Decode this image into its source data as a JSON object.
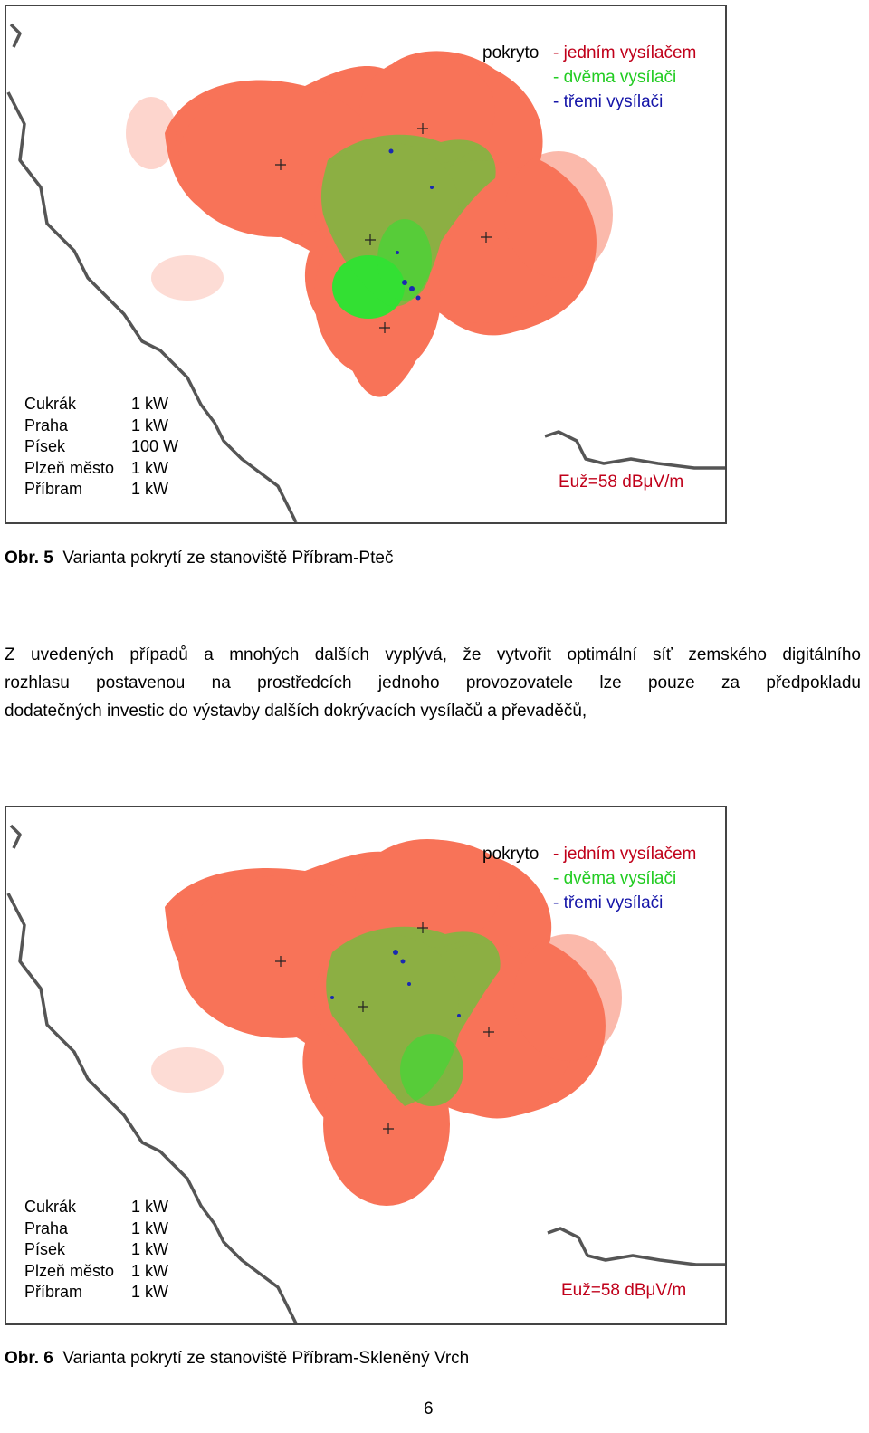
{
  "figures": [
    {
      "legend": {
        "lead": "pokryto",
        "items": [
          {
            "text": "- jedním vysílačem",
            "color": "#c0001a"
          },
          {
            "text": "- dvěma vysílači",
            "color": "#22cc22"
          },
          {
            "text": "- třemi vysílači",
            "color": "#1515a8"
          }
        ]
      },
      "stations": [
        {
          "name": "Cukrák",
          "power": "1 kW"
        },
        {
          "name": "Praha",
          "power": "1 kW"
        },
        {
          "name": "Písek",
          "power": "100 W"
        },
        {
          "name": "Plzeň město",
          "power": "1 kW"
        },
        {
          "name": "Příbram",
          "power": "1 kW"
        }
      ],
      "field_strength": "Euž=58 dBμV/m",
      "caption_label": "Obr. 5",
      "caption_text": "Varianta pokrytí ze stanoviště Příbram-Pteč"
    },
    {
      "legend": {
        "lead": "pokryto",
        "items": [
          {
            "text": "- jedním vysílačem",
            "color": "#c0001a"
          },
          {
            "text": "- dvěma vysílači",
            "color": "#22cc22"
          },
          {
            "text": "- třemi vysílači",
            "color": "#1515a8"
          }
        ]
      },
      "stations": [
        {
          "name": "Cukrák",
          "power": "1 kW"
        },
        {
          "name": "Praha",
          "power": "1 kW"
        },
        {
          "name": "Písek",
          "power": "1 kW"
        },
        {
          "name": "Plzeň město",
          "power": "1 kW"
        },
        {
          "name": "Příbram",
          "power": "1 kW"
        }
      ],
      "field_strength": "Euž=58 dBμV/m",
      "caption_label": "Obr. 6",
      "caption_text": "Varianta pokrytí ze stanoviště Příbram-Skleněný Vrch"
    }
  ],
  "paragraph_lines": [
    "Z uvedených případů a mnohých dalších vyplývá, že vytvořit optimální síť zemského digitálního",
    "rozhlasu postavenou na prostředcích jednoho provozovatele lze pouze za předpokladu",
    "dodatečných investic do výstavby dalších dokrývacích vysílačů a převaděčů,"
  ],
  "page_number": "6",
  "colors": {
    "coverage_single": "#f87358",
    "coverage_double": "#33e033",
    "coverage_triple": "#1a2ab0",
    "border": "#555555"
  }
}
